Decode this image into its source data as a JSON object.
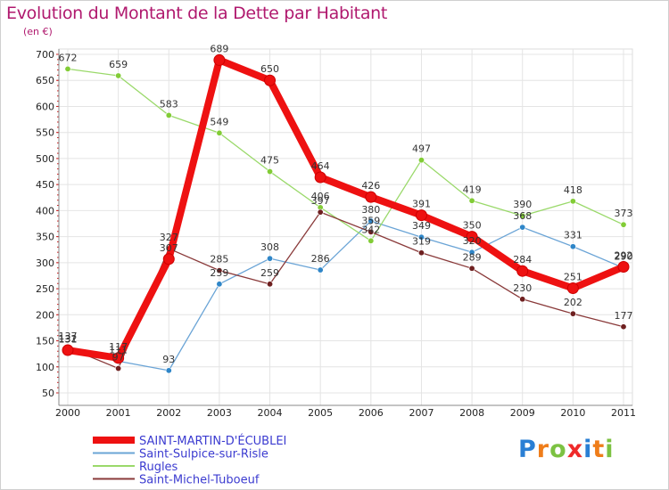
{
  "chart_data": {
    "type": "line",
    "title": "Evolution du Montant de la Dette par Habitant",
    "unit_label": "(en €)",
    "xlabel": "",
    "ylabel": "",
    "ylim": [
      50,
      700
    ],
    "yticks": [
      50,
      100,
      150,
      200,
      250,
      300,
      350,
      400,
      450,
      500,
      550,
      600,
      650,
      700
    ],
    "categories": [
      "2000",
      "2001",
      "2002",
      "2003",
      "2004",
      "2005",
      "2006",
      "2007",
      "2008",
      "2009",
      "2010",
      "2011"
    ],
    "grid": true,
    "legend_position": "bottom-left",
    "series": [
      {
        "name": "SAINT-MARTIN-D'ÉCUBLEI",
        "color": "#ee1111",
        "marker": "#ee1111",
        "highlight": true,
        "values": [
          132,
          117,
          307,
          689,
          650,
          464,
          426,
          391,
          350,
          284,
          251,
          292
        ]
      },
      {
        "name": "Saint-Sulpice-sur-Risle",
        "color": "#6aa4d6",
        "marker": "#2f86c8",
        "highlight": false,
        "values": [
          131,
          111,
          93,
          259,
          308,
          286,
          380,
          349,
          320,
          368,
          331,
          290
        ]
      },
      {
        "name": "Rugles",
        "color": "#9ad96a",
        "marker": "#82cc36",
        "highlight": false,
        "values": [
          672,
          659,
          583,
          549,
          475,
          406,
          342,
          497,
          419,
          390,
          418,
          373
        ]
      },
      {
        "name": "Saint-Michel-Tuboeuf",
        "color": "#8a3a3a",
        "marker": "#6e2020",
        "highlight": false,
        "values": [
          137,
          97,
          327,
          285,
          259,
          397,
          359,
          319,
          289,
          230,
          202,
          177
        ]
      }
    ]
  },
  "logo": {
    "letters": [
      "P",
      "r",
      "o",
      "x",
      "i",
      "t",
      "i"
    ],
    "colors": [
      "#2a7fd4",
      "#ef7d1a",
      "#7cc242",
      "#ef2a2a",
      "#2a7fd4",
      "#ef7d1a",
      "#7cc242"
    ]
  }
}
